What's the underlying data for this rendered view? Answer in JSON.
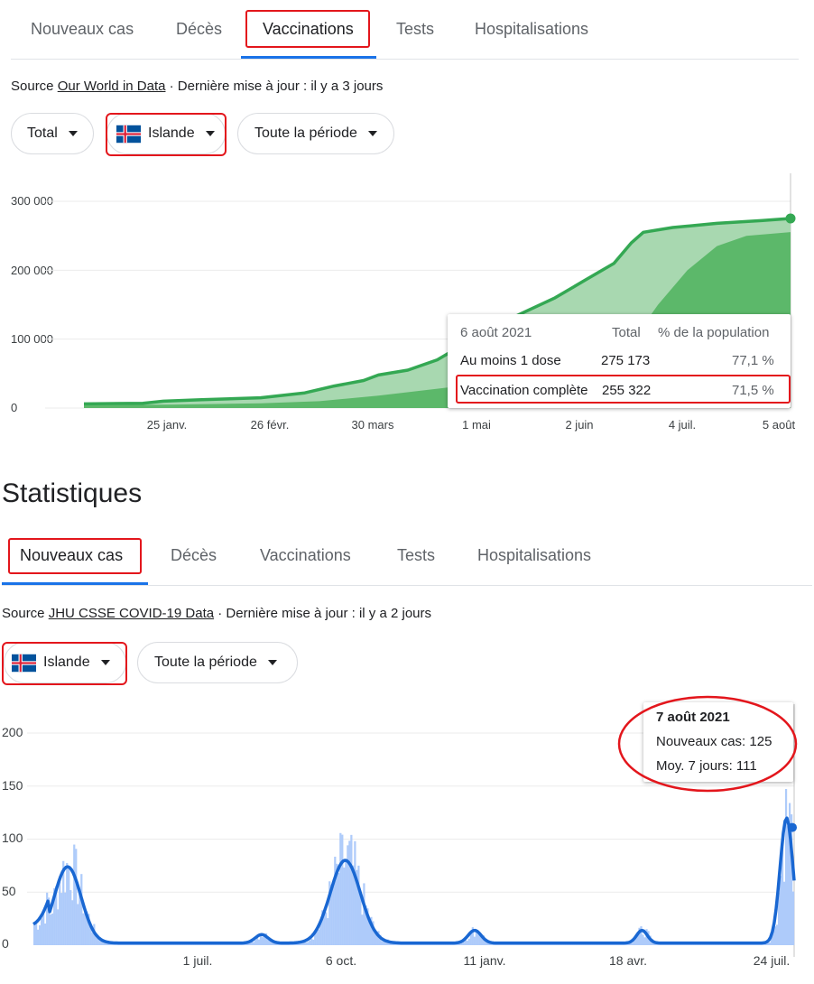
{
  "top": {
    "tabs": [
      {
        "label": "Nouveaux cas",
        "active": false
      },
      {
        "label": "Décès",
        "active": false
      },
      {
        "label": "Vaccinations",
        "active": true
      },
      {
        "label": "Tests",
        "active": false
      },
      {
        "label": "Hospitalisations",
        "active": false
      }
    ],
    "source_prefix": "Source ",
    "source_link": "Our World in Data",
    "source_suffix": " · Dernière mise à jour : il y a 3 jours",
    "filters": {
      "metric": "Total",
      "country": "Islande",
      "period": "Toute la période"
    }
  },
  "vaccination_chart": {
    "type": "area",
    "y_ticks": [
      "300 000",
      "200 000",
      "100 000",
      "0"
    ],
    "x_ticks": [
      "25 janv.",
      "26 févr.",
      "30 mars",
      "1 mai",
      "2 juin",
      "4 juil.",
      "5 août"
    ],
    "ylim": [
      0,
      300000
    ],
    "series_colors": {
      "line": "#34a853",
      "at_least_one": "#a8d8b0",
      "complete": "#5cb86a"
    },
    "series": [
      {
        "name": "Au moins 1 dose",
        "points": [
          [
            0,
            6000
          ],
          [
            20,
            7000
          ],
          [
            27,
            10000
          ],
          [
            40,
            12000
          ],
          [
            60,
            15000
          ],
          [
            75,
            22000
          ],
          [
            85,
            32000
          ],
          [
            95,
            40000
          ],
          [
            100,
            48000
          ],
          [
            110,
            55000
          ],
          [
            120,
            70000
          ],
          [
            130,
            95000
          ],
          [
            140,
            120000
          ],
          [
            150,
            140000
          ],
          [
            160,
            160000
          ],
          [
            170,
            185000
          ],
          [
            180,
            210000
          ],
          [
            186,
            240000
          ],
          [
            190,
            255000
          ],
          [
            200,
            262000
          ],
          [
            215,
            268000
          ],
          [
            230,
            272000
          ],
          [
            240,
            275173
          ]
        ]
      },
      {
        "name": "Vaccination complète",
        "points": [
          [
            0,
            4000
          ],
          [
            30,
            5000
          ],
          [
            60,
            7000
          ],
          [
            80,
            10000
          ],
          [
            100,
            18000
          ],
          [
            120,
            28000
          ],
          [
            140,
            38000
          ],
          [
            160,
            45000
          ],
          [
            175,
            60000
          ],
          [
            185,
            90000
          ],
          [
            195,
            150000
          ],
          [
            205,
            200000
          ],
          [
            215,
            235000
          ],
          [
            225,
            250000
          ],
          [
            240,
            255322
          ]
        ]
      }
    ],
    "tooltip": {
      "date": "6 août 2021",
      "col_total": "Total",
      "col_pct": "% de la population",
      "rows": [
        {
          "label": "Au moins 1 dose",
          "total": "275 173",
          "pct": "77,1 %"
        },
        {
          "label": "Vaccination complète",
          "total": "255 322",
          "pct": "71,5 %"
        }
      ]
    }
  },
  "stats": {
    "title": "Statistiques",
    "tabs": [
      {
        "label": "Nouveaux cas",
        "active": true
      },
      {
        "label": "Décès",
        "active": false
      },
      {
        "label": "Vaccinations",
        "active": false
      },
      {
        "label": "Tests",
        "active": false
      },
      {
        "label": "Hospitalisations",
        "active": false
      }
    ],
    "source_prefix": "Source ",
    "source_link": "JHU CSSE COVID-19 Data",
    "source_suffix": " · Dernière mise à jour : il y a 2 jours",
    "filters": {
      "country": "Islande",
      "period": "Toute la période"
    }
  },
  "cases_chart": {
    "type": "bar",
    "y_ticks": [
      "200",
      "150",
      "100",
      "50",
      "0"
    ],
    "x_ticks": [
      "1 juil.",
      "6 oct.",
      "11 janv.",
      "18 avr.",
      "24 juil."
    ],
    "ylim": [
      0,
      200
    ],
    "colors": {
      "bars": "#aecbfa",
      "line": "#1967d2"
    },
    "tooltip": {
      "date": "7 août 2021",
      "cases": "Nouveaux cas: 125",
      "avg": "Moy. 7 jours: 111"
    }
  }
}
